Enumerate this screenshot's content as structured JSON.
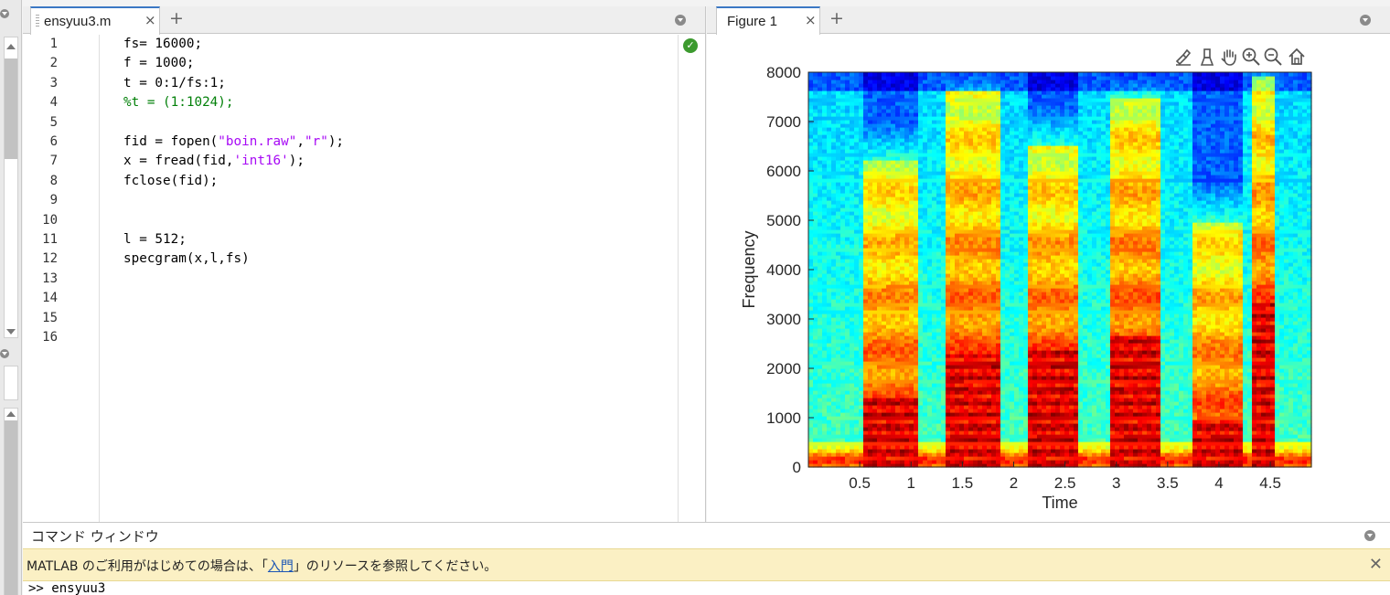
{
  "editor": {
    "tab_label": "ensyuu3.m",
    "tab_close": "×",
    "add_tab": "+",
    "status": "✓",
    "lines": [
      {
        "no": "1",
        "segments": [
          {
            "t": "fs= 16000;",
            "c": "code"
          }
        ]
      },
      {
        "no": "2",
        "segments": [
          {
            "t": "f = 1000;",
            "c": "code"
          }
        ]
      },
      {
        "no": "3",
        "segments": [
          {
            "t": "t = 0:1/fs:1;",
            "c": "code"
          }
        ]
      },
      {
        "no": "4",
        "segments": [
          {
            "t": "%t = (1:1024);",
            "c": "cmt"
          }
        ]
      },
      {
        "no": "5",
        "segments": []
      },
      {
        "no": "6",
        "segments": [
          {
            "t": "fid = fopen(",
            "c": "code"
          },
          {
            "t": "\"boin.raw\"",
            "c": "str"
          },
          {
            "t": ",",
            "c": "code"
          },
          {
            "t": "\"r\"",
            "c": "str"
          },
          {
            "t": ");",
            "c": "code"
          }
        ]
      },
      {
        "no": "7",
        "segments": [
          {
            "t": "x = fread(fid,",
            "c": "code"
          },
          {
            "t": "'int16'",
            "c": "str"
          },
          {
            "t": ");",
            "c": "code"
          }
        ]
      },
      {
        "no": "8",
        "segments": [
          {
            "t": "fclose(fid);",
            "c": "code"
          }
        ]
      },
      {
        "no": "9",
        "segments": []
      },
      {
        "no": "10",
        "segments": []
      },
      {
        "no": "11",
        "segments": [
          {
            "t": "l = 512;",
            "c": "code"
          }
        ]
      },
      {
        "no": "12",
        "segments": [
          {
            "t": "specgram(x,l,fs)",
            "c": "code"
          }
        ]
      },
      {
        "no": "13",
        "segments": []
      },
      {
        "no": "14",
        "segments": []
      },
      {
        "no": "15",
        "segments": []
      },
      {
        "no": "16",
        "segments": []
      }
    ]
  },
  "figure": {
    "tab_label": "Figure 1",
    "tab_close": "×",
    "add_tab": "+",
    "toolbar_icons": [
      "brush-icon",
      "data-tips-icon",
      "pan-icon",
      "zoom-in-icon",
      "zoom-out-icon",
      "home-icon"
    ]
  },
  "chart_data": {
    "type": "heatmap",
    "title": "",
    "xlabel": "Time",
    "ylabel": "Frequency",
    "xlim": [
      0,
      4.9
    ],
    "ylim": [
      0,
      8000
    ],
    "xticks": [
      "0.5",
      "1",
      "1.5",
      "2",
      "2.5",
      "3",
      "3.5",
      "4",
      "4.5"
    ],
    "xtick_values": [
      0.5,
      1,
      1.5,
      2,
      2.5,
      3,
      3.5,
      4,
      4.5
    ],
    "yticks": [
      "0",
      "1000",
      "2000",
      "3000",
      "4000",
      "5000",
      "6000",
      "7000",
      "8000"
    ],
    "ytick_values": [
      0,
      1000,
      2000,
      3000,
      4000,
      5000,
      6000,
      7000,
      8000
    ],
    "colormap": "jet",
    "segments": [
      {
        "start": 0.55,
        "end": 1.05,
        "harmonic_top": 1400,
        "energy_top": 6200
      },
      {
        "start": 1.35,
        "end": 1.85,
        "harmonic_top": 2300,
        "energy_top": 7600
      },
      {
        "start": 2.15,
        "end": 2.65,
        "harmonic_top": 2400,
        "energy_top": 6500
      },
      {
        "start": 2.95,
        "end": 3.45,
        "harmonic_top": 2700,
        "energy_top": 7500
      },
      {
        "start": 3.75,
        "end": 4.25,
        "harmonic_top": 1000,
        "energy_top": 5000
      },
      {
        "start": 4.3,
        "end": 4.55,
        "harmonic_top": 3300,
        "energy_top": 7900
      }
    ]
  },
  "command_window": {
    "title": "コマンド ウィンドウ",
    "notice_before": "MATLAB のご利用がはじめての場合は、「",
    "notice_link": "入門",
    "notice_after": "」のリソースを参照してください。",
    "notice_close": "✕",
    "prompt": ">> ensyuu3"
  }
}
